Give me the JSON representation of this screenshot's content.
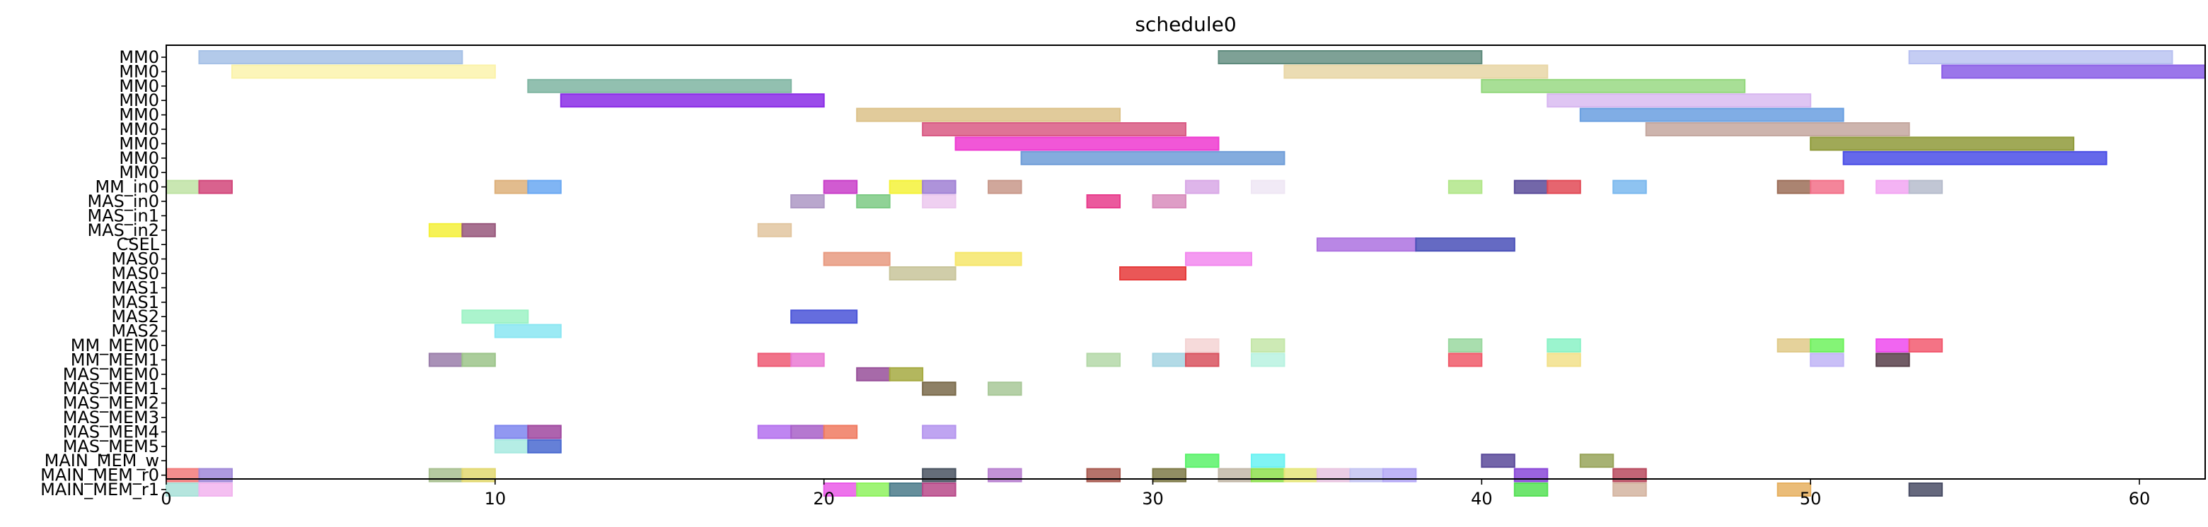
{
  "chart_data": {
    "type": "gantt",
    "title": "schedule0",
    "xlim": [
      0,
      62
    ],
    "x_ticks": [
      0,
      10,
      20,
      30,
      40,
      50,
      60
    ],
    "grid": false,
    "rows": [
      "MM0",
      "MM0",
      "MM0",
      "MM0",
      "MM0",
      "MM0",
      "MM0",
      "MM0",
      "MM0",
      "MM_in0",
      "MAS_in0",
      "MAS_in1",
      "MAS_in2",
      "CSEL",
      "MAS0",
      "MAS0",
      "MAS1",
      "MAS1",
      "MAS2",
      "MAS2",
      "MM_MEM0",
      "MM_MEM1",
      "MAS_MEM0",
      "MAS_MEM1",
      "MAS_MEM2",
      "MAS_MEM3",
      "MAS_MEM4",
      "MAS_MEM5",
      "MAIN_MEM_w",
      "MAIN_MEM_r0",
      "MAIN_MEM_r1"
    ],
    "tasks": [
      {
        "row": 0,
        "start": 1,
        "end": 9,
        "color": "#a6c1e6",
        "alpha": 0.85
      },
      {
        "row": 0,
        "start": 32,
        "end": 40,
        "color": "#5e8a7c",
        "alpha": 0.8
      },
      {
        "row": 0,
        "start": 53,
        "end": 61,
        "color": "#b7c0f0",
        "alpha": 0.8
      },
      {
        "row": 1,
        "start": 2,
        "end": 10,
        "color": "#fbf2a8",
        "alpha": 0.8
      },
      {
        "row": 1,
        "start": 34,
        "end": 42,
        "color": "#e8d6a6",
        "alpha": 0.85
      },
      {
        "row": 1,
        "start": 54,
        "end": 62,
        "color": "#8a5ee6",
        "alpha": 0.85
      },
      {
        "row": 2,
        "start": 11,
        "end": 19,
        "color": "#7fb5a2",
        "alpha": 0.85
      },
      {
        "row": 2,
        "start": 40,
        "end": 48,
        "color": "#92d77c",
        "alpha": 0.8
      },
      {
        "row": 3,
        "start": 12,
        "end": 20,
        "color": "#8a2ce6",
        "alpha": 0.85
      },
      {
        "row": 3,
        "start": 42,
        "end": 50,
        "color": "#d7b6f0",
        "alpha": 0.8
      },
      {
        "row": 4,
        "start": 21,
        "end": 29,
        "color": "#dcc28a",
        "alpha": 0.85
      },
      {
        "row": 4,
        "start": 43,
        "end": 51,
        "color": "#6a9fe0",
        "alpha": 0.85
      },
      {
        "row": 5,
        "start": 23,
        "end": 31,
        "color": "#d95a84",
        "alpha": 0.85
      },
      {
        "row": 5,
        "start": 45,
        "end": 53,
        "color": "#c4a79f",
        "alpha": 0.85
      },
      {
        "row": 6,
        "start": 24,
        "end": 32,
        "color": "#ee3ad0",
        "alpha": 0.85
      },
      {
        "row": 6,
        "start": 50,
        "end": 58,
        "color": "#8f9a3a",
        "alpha": 0.85
      },
      {
        "row": 7,
        "start": 26,
        "end": 34,
        "color": "#6f9dd8",
        "alpha": 0.85
      },
      {
        "row": 7,
        "start": 51,
        "end": 59,
        "color": "#4a4ee6",
        "alpha": 0.85
      },
      {
        "row": 9,
        "start": 0,
        "end": 1,
        "color": "#bfe3a4",
        "alpha": 0.85
      },
      {
        "row": 9,
        "start": 1,
        "end": 2,
        "color": "#d2467a",
        "alpha": 0.85
      },
      {
        "row": 9,
        "start": 10,
        "end": 11,
        "color": "#ddb07a",
        "alpha": 0.85
      },
      {
        "row": 9,
        "start": 11,
        "end": 12,
        "color": "#6aa8f2",
        "alpha": 0.85
      },
      {
        "row": 9,
        "start": 20,
        "end": 21,
        "color": "#c93ec9",
        "alpha": 0.85
      },
      {
        "row": 9,
        "start": 22,
        "end": 23,
        "color": "#f4f23a",
        "alpha": 0.85
      },
      {
        "row": 9,
        "start": 23,
        "end": 24,
        "color": "#a080d4",
        "alpha": 0.85
      },
      {
        "row": 9,
        "start": 25,
        "end": 26,
        "color": "#c8988a",
        "alpha": 0.85
      },
      {
        "row": 9,
        "start": 31,
        "end": 32,
        "color": "#d8a8e6",
        "alpha": 0.85
      },
      {
        "row": 9,
        "start": 33,
        "end": 34,
        "color": "#efe6f4",
        "alpha": 0.85
      },
      {
        "row": 9,
        "start": 39,
        "end": 40,
        "color": "#b2e68a",
        "alpha": 0.85
      },
      {
        "row": 9,
        "start": 41,
        "end": 42,
        "color": "#5a4c9a",
        "alpha": 0.85
      },
      {
        "row": 9,
        "start": 42,
        "end": 43,
        "color": "#e24a56",
        "alpha": 0.85
      },
      {
        "row": 9,
        "start": 44,
        "end": 45,
        "color": "#7ab8ee",
        "alpha": 0.85
      },
      {
        "row": 9,
        "start": 49,
        "end": 50,
        "color": "#9c6e58",
        "alpha": 0.85
      },
      {
        "row": 9,
        "start": 50,
        "end": 51,
        "color": "#f27088",
        "alpha": 0.85
      },
      {
        "row": 9,
        "start": 52,
        "end": 53,
        "color": "#f2a6f2",
        "alpha": 0.85
      },
      {
        "row": 9,
        "start": 53,
        "end": 54,
        "color": "#b6bccc",
        "alpha": 0.85
      },
      {
        "row": 10,
        "start": 19,
        "end": 20,
        "color": "#ad98c4",
        "alpha": 0.85
      },
      {
        "row": 10,
        "start": 21,
        "end": 22,
        "color": "#7cca84",
        "alpha": 0.85
      },
      {
        "row": 10,
        "start": 23,
        "end": 24,
        "color": "#ecc8ee",
        "alpha": 0.85
      },
      {
        "row": 10,
        "start": 28,
        "end": 29,
        "color": "#e83c8c",
        "alpha": 0.85
      },
      {
        "row": 10,
        "start": 30,
        "end": 31,
        "color": "#d88cbc",
        "alpha": 0.85
      },
      {
        "row": 12,
        "start": 8,
        "end": 9,
        "color": "#f4f03a",
        "alpha": 0.85
      },
      {
        "row": 12,
        "start": 9,
        "end": 10,
        "color": "#98587c",
        "alpha": 0.85
      },
      {
        "row": 12,
        "start": 18,
        "end": 19,
        "color": "#e2c6a0",
        "alpha": 0.85
      },
      {
        "row": 13,
        "start": 35,
        "end": 38,
        "color": "#ad72e0",
        "alpha": 0.85
      },
      {
        "row": 13,
        "start": 38,
        "end": 41,
        "color": "#4a50b8",
        "alpha": 0.85
      },
      {
        "row": 14,
        "start": 20,
        "end": 22,
        "color": "#e89a80",
        "alpha": 0.85
      },
      {
        "row": 14,
        "start": 24,
        "end": 26,
        "color": "#f6e66a",
        "alpha": 0.85
      },
      {
        "row": 14,
        "start": 31,
        "end": 33,
        "color": "#f288ee",
        "alpha": 0.85
      },
      {
        "row": 15,
        "start": 22,
        "end": 24,
        "color": "#c8c49a",
        "alpha": 0.85
      },
      {
        "row": 15,
        "start": 29,
        "end": 31,
        "color": "#e63a3a",
        "alpha": 0.85
      },
      {
        "row": 18,
        "start": 9,
        "end": 11,
        "color": "#9cf2c4",
        "alpha": 0.85
      },
      {
        "row": 18,
        "start": 19,
        "end": 21,
        "color": "#4a54d8",
        "alpha": 0.85
      },
      {
        "row": 19,
        "start": 10,
        "end": 12,
        "color": "#8ae6f2",
        "alpha": 0.85
      },
      {
        "row": 20,
        "start": 31,
        "end": 32,
        "color": "#f4d4d4",
        "alpha": 0.85
      },
      {
        "row": 20,
        "start": 33,
        "end": 34,
        "color": "#c4e6a8",
        "alpha": 0.85
      },
      {
        "row": 20,
        "start": 39,
        "end": 40,
        "color": "#9ad8a0",
        "alpha": 0.85
      },
      {
        "row": 20,
        "start": 42,
        "end": 43,
        "color": "#8af2c6",
        "alpha": 0.85
      },
      {
        "row": 20,
        "start": 49,
        "end": 50,
        "color": "#e0ca8a",
        "alpha": 0.85
      },
      {
        "row": 20,
        "start": 50,
        "end": 51,
        "color": "#6ef25e",
        "alpha": 0.85
      },
      {
        "row": 20,
        "start": 52,
        "end": 53,
        "color": "#ee4aee",
        "alpha": 0.85
      },
      {
        "row": 20,
        "start": 53,
        "end": 54,
        "color": "#f25a70",
        "alpha": 0.85
      },
      {
        "row": 21,
        "start": 8,
        "end": 9,
        "color": "#9a7eaa",
        "alpha": 0.85
      },
      {
        "row": 21,
        "start": 9,
        "end": 10,
        "color": "#9cc48a",
        "alpha": 0.85
      },
      {
        "row": 21,
        "start": 18,
        "end": 19,
        "color": "#ee5a74",
        "alpha": 0.85
      },
      {
        "row": 21,
        "start": 19,
        "end": 20,
        "color": "#ea7ad4",
        "alpha": 0.85
      },
      {
        "row": 21,
        "start": 28,
        "end": 29,
        "color": "#b4d8a8",
        "alpha": 0.85
      },
      {
        "row": 21,
        "start": 30,
        "end": 31,
        "color": "#a4d4e2",
        "alpha": 0.85
      },
      {
        "row": 21,
        "start": 31,
        "end": 32,
        "color": "#d8525e",
        "alpha": 0.85
      },
      {
        "row": 21,
        "start": 33,
        "end": 34,
        "color": "#b8f2e0",
        "alpha": 0.85
      },
      {
        "row": 21,
        "start": 39,
        "end": 40,
        "color": "#f05a6a",
        "alpha": 0.85
      },
      {
        "row": 21,
        "start": 42,
        "end": 43,
        "color": "#f2e08a",
        "alpha": 0.85
      },
      {
        "row": 21,
        "start": 50,
        "end": 51,
        "color": "#c0b4f6",
        "alpha": 0.85
      },
      {
        "row": 21,
        "start": 52,
        "end": 53,
        "color": "#58404a",
        "alpha": 0.85
      },
      {
        "row": 22,
        "start": 21,
        "end": 22,
        "color": "#98509a",
        "alpha": 0.85
      },
      {
        "row": 22,
        "start": 22,
        "end": 23,
        "color": "#a6aa42",
        "alpha": 0.85
      },
      {
        "row": 23,
        "start": 23,
        "end": 24,
        "color": "#7a6a4a",
        "alpha": 0.85
      },
      {
        "row": 23,
        "start": 25,
        "end": 26,
        "color": "#a8c898",
        "alpha": 0.85
      },
      {
        "row": 26,
        "start": 10,
        "end": 11,
        "color": "#7e86ee",
        "alpha": 0.85
      },
      {
        "row": 26,
        "start": 11,
        "end": 12,
        "color": "#a048a0",
        "alpha": 0.85
      },
      {
        "row": 26,
        "start": 18,
        "end": 19,
        "color": "#b470ee",
        "alpha": 0.85
      },
      {
        "row": 26,
        "start": 19,
        "end": 20,
        "color": "#a860c8",
        "alpha": 0.85
      },
      {
        "row": 26,
        "start": 20,
        "end": 21,
        "color": "#f07a60",
        "alpha": 0.85
      },
      {
        "row": 26,
        "start": 23,
        "end": 24,
        "color": "#b494ee",
        "alpha": 0.85
      },
      {
        "row": 27,
        "start": 10,
        "end": 11,
        "color": "#a8eae0",
        "alpha": 0.85
      },
      {
        "row": 27,
        "start": 11,
        "end": 12,
        "color": "#4a6ad0",
        "alpha": 0.85
      },
      {
        "row": 28,
        "start": 31,
        "end": 32,
        "color": "#5af26a",
        "alpha": 0.85
      },
      {
        "row": 28,
        "start": 33,
        "end": 34,
        "color": "#6af2f2",
        "alpha": 0.85
      },
      {
        "row": 28,
        "start": 40,
        "end": 41,
        "color": "#5a4a9a",
        "alpha": 0.85
      },
      {
        "row": 28,
        "start": 43,
        "end": 44,
        "color": "#98a45a",
        "alpha": 0.85
      },
      {
        "row": 29,
        "start": 0,
        "end": 1,
        "color": "#f27a7a",
        "alpha": 0.85
      },
      {
        "row": 29,
        "start": 1,
        "end": 2,
        "color": "#a088d8",
        "alpha": 0.85
      },
      {
        "row": 29,
        "start": 8,
        "end": 9,
        "color": "#a8c090",
        "alpha": 0.85
      },
      {
        "row": 29,
        "start": 9,
        "end": 10,
        "color": "#e2d870",
        "alpha": 0.85
      },
      {
        "row": 29,
        "start": 23,
        "end": 24,
        "color": "#4a5462",
        "alpha": 0.85
      },
      {
        "row": 29,
        "start": 25,
        "end": 26,
        "color": "#b880d0",
        "alpha": 0.85
      },
      {
        "row": 29,
        "start": 28,
        "end": 29,
        "color": "#a85a50",
        "alpha": 0.85
      },
      {
        "row": 29,
        "start": 30,
        "end": 31,
        "color": "#7e7a48",
        "alpha": 0.85
      },
      {
        "row": 29,
        "start": 32,
        "end": 33,
        "color": "#c2b8a8",
        "alpha": 0.85
      },
      {
        "row": 29,
        "start": 33,
        "end": 34,
        "color": "#8ee04e",
        "alpha": 0.85
      },
      {
        "row": 29,
        "start": 34,
        "end": 35,
        "color": "#e6e67a",
        "alpha": 0.85
      },
      {
        "row": 29,
        "start": 35,
        "end": 36,
        "color": "#e8c4e0",
        "alpha": 0.85
      },
      {
        "row": 29,
        "start": 36,
        "end": 37,
        "color": "#c4c4f2",
        "alpha": 0.85
      },
      {
        "row": 29,
        "start": 37,
        "end": 38,
        "color": "#b4a8f6",
        "alpha": 0.85
      },
      {
        "row": 29,
        "start": 41,
        "end": 42,
        "color": "#8a48d8",
        "alpha": 0.85
      },
      {
        "row": 29,
        "start": 44,
        "end": 45,
        "color": "#b84a5e",
        "alpha": 0.85
      },
      {
        "row": 30,
        "start": 0,
        "end": 1,
        "color": "#a8e0d8",
        "alpha": 0.85
      },
      {
        "row": 30,
        "start": 1,
        "end": 2,
        "color": "#f2b4ee",
        "alpha": 0.85
      },
      {
        "row": 30,
        "start": 20,
        "end": 21,
        "color": "#ea5ae8",
        "alpha": 0.85
      },
      {
        "row": 30,
        "start": 21,
        "end": 22,
        "color": "#8ef25e",
        "alpha": 0.85
      },
      {
        "row": 30,
        "start": 22,
        "end": 23,
        "color": "#4a7a8a",
        "alpha": 0.85
      },
      {
        "row": 30,
        "start": 23,
        "end": 24,
        "color": "#b84a8a",
        "alpha": 0.85
      },
      {
        "row": 30,
        "start": 41,
        "end": 42,
        "color": "#56e056",
        "alpha": 0.85
      },
      {
        "row": 30,
        "start": 44,
        "end": 45,
        "color": "#d4b4a0",
        "alpha": 0.85
      },
      {
        "row": 30,
        "start": 49,
        "end": 50,
        "color": "#e6b060",
        "alpha": 0.85
      },
      {
        "row": 30,
        "start": 53,
        "end": 54,
        "color": "#4a4e66",
        "alpha": 0.85
      }
    ]
  }
}
